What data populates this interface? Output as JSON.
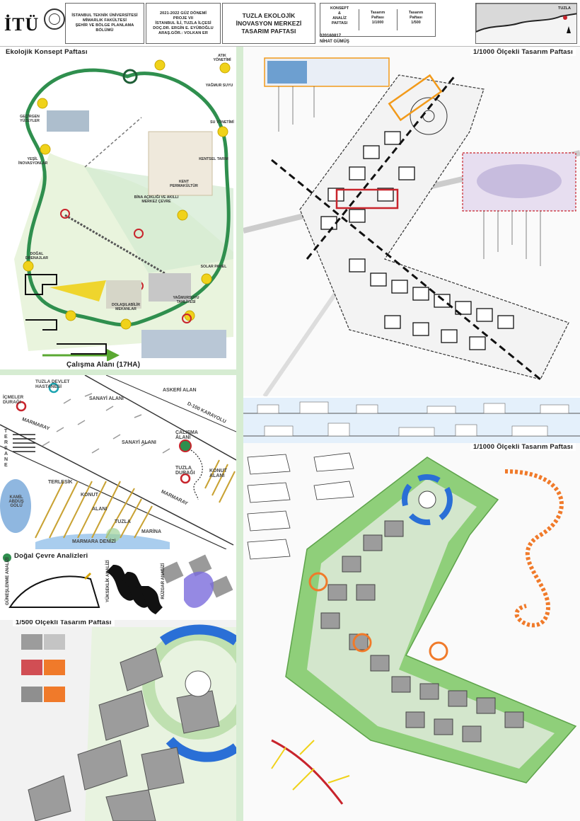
{
  "header": {
    "logo": "İTÜ",
    "university": [
      "İSTANBUL TEKNİK ÜNİVERSİTESİ",
      "MİMARLIK FAKÜLTESİ",
      "ŞEHİR VE BÖLGE PLANLAMA",
      "BÖLÜMÜ"
    ],
    "course": [
      "2021-2022 GÜZ DÖNEMİ",
      "PROJE VII",
      "İSTANBUL İLİ, TUZLA İLÇESİ",
      "DOÇ.DR. ERGİN E. EYÜBOĞLU",
      "ARAŞ.GÖR.: VOLKAN ER"
    ],
    "project_title": [
      "TUZLA EKOLOJİK",
      "İNOVASYON MERKEZİ",
      "TASARIM PAFTASI"
    ],
    "sheet_cols": [
      {
        "lines": [
          "KONSEPT",
          "&",
          "ANALİZ",
          "PAFTASI"
        ]
      },
      {
        "lines": [
          "Tasarım",
          "Paftası",
          "1/1000"
        ]
      },
      {
        "lines": [
          "Tasarım",
          "Paftası",
          "1/500"
        ]
      }
    ],
    "student_id": "020160817",
    "student_name": "NİHAT GÜMÜŞ",
    "map_label": "TUZLA"
  },
  "panels": {
    "concept_title": "Ekolojik Konsept Paftası",
    "plan1000_title_a": "1/1000 Ölçekli Tasarım Paftası",
    "study_area_title": "Çalışma Alanı (17HA)",
    "plan1000_title_b": "1/1000 Ölçekli Tasarım Paftası",
    "nature_title": "Doğal Çevre Analizleri",
    "plan500_title": "1/500 Ölçekli Tasarım Paftası"
  },
  "concept_nodes": [
    "GEÇİRGEN YÜZEYLER",
    "YEŞİL İNOVASYONLAR",
    "DOĞAL DRENAJLAR",
    "YAĞMUR SUYU",
    "ATIK YÖNETİMİ",
    "SU YÖNETİMİ",
    "KENT PERMAKÜLTÜR",
    "KENTSEL TARIM",
    "BİNA AÇIKLIĞI VE AKILLI MERKEZ ÇEVRE",
    "SOLAR PANEL",
    "YAĞMURSUYU TAHLİYESİ",
    "DOLAŞILABİLİR MEKANLAR"
  ],
  "study_area": {
    "labels": [
      "TUZLA DEVLET HASTANESİ",
      "İÇMELER DURAĞI",
      "SANAYİ ALANI",
      "ASKERİ ALAN",
      "D-100 KARAYOLU",
      "SANAYİ ALANI",
      "ÇALIŞMA ALANI",
      "MARMARAY",
      "TERSANE",
      "TUZLA DURAĞI",
      "KONUT ALANI",
      "KAMİL ABDÜŞ GÖLÜ",
      "TERLESİK",
      "KONUT",
      "ALANI",
      "MARMARAY",
      "TUZLA",
      "MARİNA",
      "MARMARA DENİZİ"
    ]
  },
  "nature": {
    "analyses": [
      "GÜNEŞLENME ANALİZİ",
      "YÜKSEKLİK ANALİZİ",
      "RÜZGAR ANALİZİ"
    ]
  },
  "colors": {
    "green_path": "#2f8f4e",
    "yellow_node": "#f0d21a",
    "red_ring": "#c8242c",
    "orange": "#f07a2a",
    "plan_green": "#8fcf7a",
    "building": "#9c9c9c",
    "blue_accent": "#2a6fd6"
  }
}
